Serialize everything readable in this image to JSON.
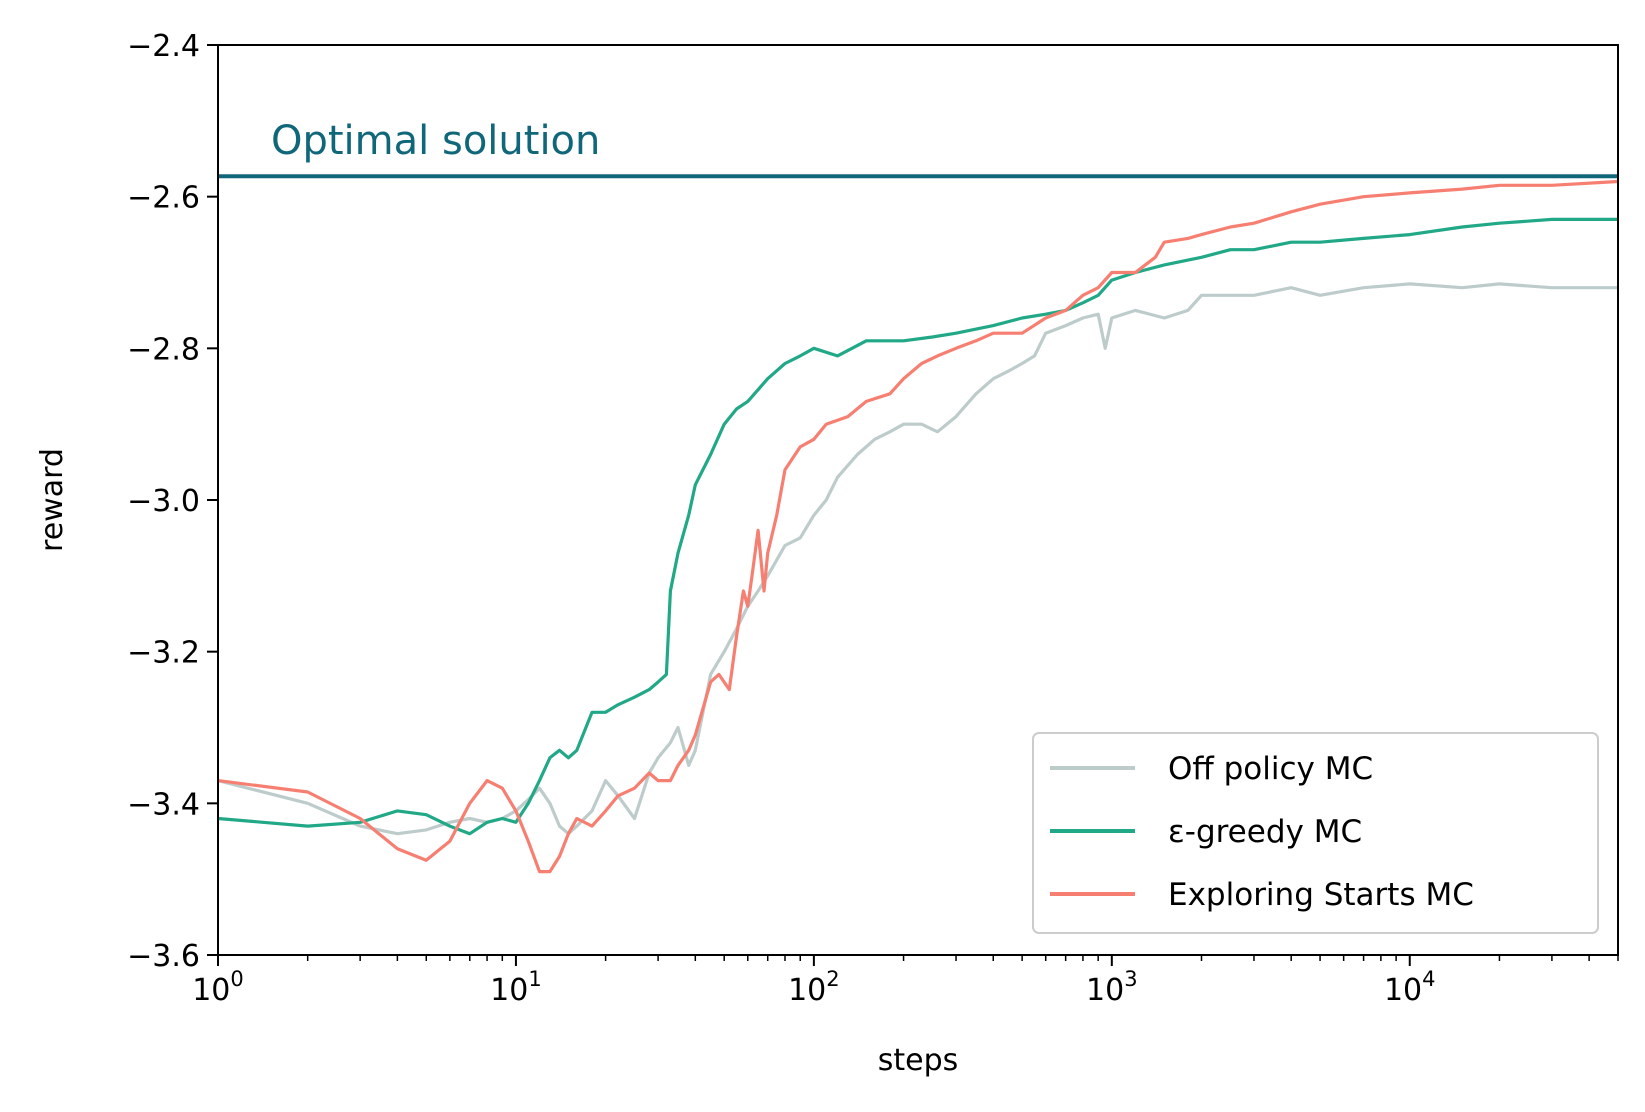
{
  "chart_data": {
    "type": "line",
    "xlabel": "steps",
    "ylabel": "reward",
    "x_scale": "log",
    "xlim": [
      1,
      50000
    ],
    "ylim": [
      -3.6,
      -2.4
    ],
    "grid": false,
    "legend_position": "lower-right",
    "x_ticks": [
      {
        "value": 1,
        "base": "10",
        "exp": "0"
      },
      {
        "value": 10,
        "base": "10",
        "exp": "1"
      },
      {
        "value": 100,
        "base": "10",
        "exp": "2"
      },
      {
        "value": 1000,
        "base": "10",
        "exp": "3"
      },
      {
        "value": 10000,
        "base": "10",
        "exp": "4"
      }
    ],
    "y_ticks": [
      {
        "value": -2.4,
        "label": "−2.4"
      },
      {
        "value": -2.6,
        "label": "−2.6"
      },
      {
        "value": -2.8,
        "label": "−2.8"
      },
      {
        "value": -3.0,
        "label": "−3.0"
      },
      {
        "value": -3.2,
        "label": "−3.2"
      },
      {
        "value": -3.4,
        "label": "−3.4"
      },
      {
        "value": -3.6,
        "label": "−3.6"
      }
    ],
    "reference_line": {
      "label": "Optimal solution",
      "value": -2.573,
      "color": "#11677a"
    },
    "series": [
      {
        "name": "Off policy MC",
        "color": "#bdcccb",
        "x": [
          1,
          2,
          3,
          4,
          5,
          6,
          7,
          8,
          9,
          10,
          11,
          12,
          13,
          14,
          15,
          16,
          18,
          20,
          22,
          25,
          28,
          30,
          33,
          35,
          38,
          40,
          45,
          50,
          55,
          60,
          65,
          70,
          80,
          90,
          100,
          110,
          120,
          140,
          160,
          180,
          200,
          230,
          260,
          300,
          350,
          400,
          450,
          500,
          550,
          600,
          700,
          800,
          900,
          950,
          1000,
          1200,
          1500,
          1800,
          2000,
          2500,
          3000,
          4000,
          5000,
          7000,
          10000,
          15000,
          20000,
          30000,
          50000
        ],
        "y": [
          -3.37,
          -3.4,
          -3.43,
          -3.44,
          -3.435,
          -3.425,
          -3.42,
          -3.425,
          -3.42,
          -3.41,
          -3.395,
          -3.38,
          -3.4,
          -3.43,
          -3.44,
          -3.43,
          -3.41,
          -3.37,
          -3.39,
          -3.42,
          -3.36,
          -3.34,
          -3.32,
          -3.3,
          -3.35,
          -3.33,
          -3.23,
          -3.2,
          -3.17,
          -3.14,
          -3.12,
          -3.1,
          -3.06,
          -3.05,
          -3.02,
          -3.0,
          -2.97,
          -2.94,
          -2.92,
          -2.91,
          -2.9,
          -2.9,
          -2.91,
          -2.89,
          -2.86,
          -2.84,
          -2.83,
          -2.82,
          -2.81,
          -2.78,
          -2.77,
          -2.76,
          -2.755,
          -2.8,
          -2.76,
          -2.75,
          -2.76,
          -2.75,
          -2.73,
          -2.73,
          -2.73,
          -2.72,
          -2.73,
          -2.72,
          -2.715,
          -2.72,
          -2.715,
          -2.72,
          -2.72
        ]
      },
      {
        "name": "ε-greedy MC",
        "color": "#21a887",
        "x": [
          1,
          2,
          3,
          4,
          5,
          6,
          7,
          8,
          9,
          10,
          11,
          12,
          13,
          14,
          15,
          16,
          18,
          20,
          22,
          25,
          28,
          30,
          32,
          33,
          35,
          38,
          40,
          45,
          50,
          55,
          60,
          70,
          80,
          90,
          100,
          120,
          150,
          200,
          250,
          300,
          400,
          500,
          600,
          700,
          800,
          900,
          1000,
          1200,
          1500,
          2000,
          2500,
          3000,
          4000,
          5000,
          7000,
          10000,
          15000,
          20000,
          30000,
          50000
        ],
        "y": [
          -3.42,
          -3.43,
          -3.425,
          -3.41,
          -3.415,
          -3.43,
          -3.44,
          -3.425,
          -3.42,
          -3.425,
          -3.4,
          -3.37,
          -3.34,
          -3.33,
          -3.34,
          -3.33,
          -3.28,
          -3.28,
          -3.27,
          -3.26,
          -3.25,
          -3.24,
          -3.23,
          -3.12,
          -3.07,
          -3.02,
          -2.98,
          -2.94,
          -2.9,
          -2.88,
          -2.87,
          -2.84,
          -2.82,
          -2.81,
          -2.8,
          -2.81,
          -2.79,
          -2.79,
          -2.785,
          -2.78,
          -2.77,
          -2.76,
          -2.755,
          -2.75,
          -2.74,
          -2.73,
          -2.71,
          -2.7,
          -2.69,
          -2.68,
          -2.67,
          -2.67,
          -2.66,
          -2.66,
          -2.655,
          -2.65,
          -2.64,
          -2.635,
          -2.63,
          -2.63
        ]
      },
      {
        "name": "Exploring Starts MC",
        "color": "#f77f72",
        "x": [
          1,
          2,
          3,
          4,
          5,
          6,
          7,
          8,
          9,
          10,
          11,
          12,
          13,
          14,
          15,
          16,
          18,
          20,
          22,
          25,
          28,
          30,
          33,
          35,
          38,
          40,
          45,
          48,
          52,
          55,
          58,
          60,
          62,
          65,
          68,
          70,
          75,
          80,
          90,
          100,
          110,
          130,
          150,
          180,
          200,
          230,
          260,
          300,
          350,
          400,
          500,
          600,
          700,
          800,
          900,
          1000,
          1200,
          1400,
          1500,
          1800,
          2000,
          2500,
          3000,
          4000,
          5000,
          7000,
          10000,
          15000,
          20000,
          30000,
          50000
        ],
        "y": [
          -3.37,
          -3.385,
          -3.42,
          -3.46,
          -3.475,
          -3.45,
          -3.4,
          -3.37,
          -3.38,
          -3.41,
          -3.45,
          -3.49,
          -3.49,
          -3.47,
          -3.44,
          -3.42,
          -3.43,
          -3.41,
          -3.39,
          -3.38,
          -3.36,
          -3.37,
          -3.37,
          -3.35,
          -3.33,
          -3.31,
          -3.24,
          -3.23,
          -3.25,
          -3.18,
          -3.12,
          -3.14,
          -3.1,
          -3.04,
          -3.12,
          -3.07,
          -3.02,
          -2.96,
          -2.93,
          -2.92,
          -2.9,
          -2.89,
          -2.87,
          -2.86,
          -2.84,
          -2.82,
          -2.81,
          -2.8,
          -2.79,
          -2.78,
          -2.78,
          -2.76,
          -2.75,
          -2.73,
          -2.72,
          -2.7,
          -2.7,
          -2.68,
          -2.66,
          -2.655,
          -2.65,
          -2.64,
          -2.635,
          -2.62,
          -2.61,
          -2.6,
          -2.595,
          -2.59,
          -2.585,
          -2.585,
          -2.58
        ]
      }
    ]
  }
}
